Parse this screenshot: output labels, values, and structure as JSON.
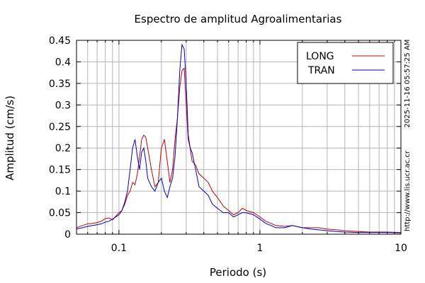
{
  "chart_data": {
    "type": "line",
    "title": "Espectro de amplitud Agroalimentarias",
    "xlabel": "Periodo (s)",
    "ylabel": "Amplitud (cm/s)",
    "x_scale": "log",
    "xlim": [
      0.05,
      10
    ],
    "ylim": [
      0,
      0.45
    ],
    "x_ticks": [
      0.1,
      1,
      10
    ],
    "x_tick_labels": [
      "0.1",
      "1",
      "10"
    ],
    "y_ticks": [
      0,
      0.05,
      0.1,
      0.15,
      0.2,
      0.25,
      0.3,
      0.35,
      0.4,
      0.45
    ],
    "y_tick_labels": [
      "0",
      "0.05",
      "0.1",
      "0.15",
      "0.2",
      "0.25",
      "0.3",
      "0.35",
      "0.4",
      "0.45"
    ],
    "grid": true,
    "legend_position": "top-right",
    "timestamp": "2025-11-16 05:57:25 AM",
    "url": "http://www.lis.ucr.ac.cr",
    "series": [
      {
        "name": "LONG",
        "color": "#cc0000",
        "x": [
          0.05,
          0.055,
          0.06,
          0.065,
          0.07,
          0.075,
          0.08,
          0.085,
          0.09,
          0.095,
          0.1,
          0.105,
          0.11,
          0.115,
          0.12,
          0.125,
          0.13,
          0.135,
          0.14,
          0.145,
          0.15,
          0.155,
          0.16,
          0.17,
          0.18,
          0.19,
          0.2,
          0.21,
          0.22,
          0.23,
          0.24,
          0.25,
          0.26,
          0.27,
          0.28,
          0.29,
          0.3,
          0.31,
          0.32,
          0.33,
          0.35,
          0.37,
          0.4,
          0.43,
          0.46,
          0.5,
          0.55,
          0.6,
          0.65,
          0.7,
          0.75,
          0.8,
          0.9,
          1.0,
          1.1,
          1.2,
          1.3,
          1.5,
          1.7,
          2.0,
          2.3,
          2.6,
          3.0,
          3.5,
          4.0,
          5.0,
          6.0,
          7.0,
          8.0,
          10.0
        ],
        "y": [
          0.015,
          0.02,
          0.024,
          0.025,
          0.027,
          0.03,
          0.036,
          0.038,
          0.033,
          0.042,
          0.05,
          0.055,
          0.07,
          0.09,
          0.1,
          0.12,
          0.115,
          0.14,
          0.18,
          0.22,
          0.23,
          0.225,
          0.2,
          0.15,
          0.11,
          0.12,
          0.2,
          0.22,
          0.17,
          0.12,
          0.15,
          0.22,
          0.27,
          0.34,
          0.38,
          0.385,
          0.3,
          0.22,
          0.2,
          0.17,
          0.16,
          0.14,
          0.13,
          0.12,
          0.1,
          0.085,
          0.065,
          0.055,
          0.045,
          0.05,
          0.06,
          0.055,
          0.05,
          0.04,
          0.03,
          0.025,
          0.02,
          0.018,
          0.02,
          0.015,
          0.015,
          0.015,
          0.012,
          0.01,
          0.008,
          0.006,
          0.005,
          0.005,
          0.005,
          0.004
        ]
      },
      {
        "name": "TRAN",
        "color": "#0000cc",
        "x": [
          0.05,
          0.055,
          0.06,
          0.065,
          0.07,
          0.075,
          0.08,
          0.085,
          0.09,
          0.095,
          0.1,
          0.105,
          0.11,
          0.115,
          0.12,
          0.125,
          0.13,
          0.135,
          0.14,
          0.145,
          0.15,
          0.155,
          0.16,
          0.17,
          0.18,
          0.19,
          0.2,
          0.21,
          0.22,
          0.23,
          0.24,
          0.25,
          0.26,
          0.27,
          0.28,
          0.29,
          0.3,
          0.31,
          0.32,
          0.33,
          0.35,
          0.37,
          0.4,
          0.43,
          0.46,
          0.5,
          0.55,
          0.6,
          0.65,
          0.7,
          0.75,
          0.8,
          0.9,
          1.0,
          1.1,
          1.2,
          1.3,
          1.5,
          1.7,
          2.0,
          2.3,
          2.6,
          3.0,
          3.5,
          4.0,
          5.0,
          6.0,
          7.0,
          8.0,
          10.0
        ],
        "y": [
          0.012,
          0.015,
          0.018,
          0.02,
          0.022,
          0.024,
          0.028,
          0.03,
          0.035,
          0.04,
          0.045,
          0.055,
          0.075,
          0.1,
          0.15,
          0.2,
          0.22,
          0.18,
          0.15,
          0.19,
          0.2,
          0.17,
          0.13,
          0.11,
          0.1,
          0.12,
          0.13,
          0.1,
          0.085,
          0.11,
          0.13,
          0.18,
          0.27,
          0.38,
          0.44,
          0.43,
          0.35,
          0.23,
          0.2,
          0.19,
          0.15,
          0.11,
          0.1,
          0.09,
          0.07,
          0.06,
          0.05,
          0.05,
          0.04,
          0.045,
          0.05,
          0.05,
          0.045,
          0.035,
          0.025,
          0.02,
          0.015,
          0.015,
          0.02,
          0.015,
          0.012,
          0.01,
          0.008,
          0.006,
          0.005,
          0.004,
          0.004,
          0.004,
          0.004,
          0.003
        ]
      }
    ]
  }
}
